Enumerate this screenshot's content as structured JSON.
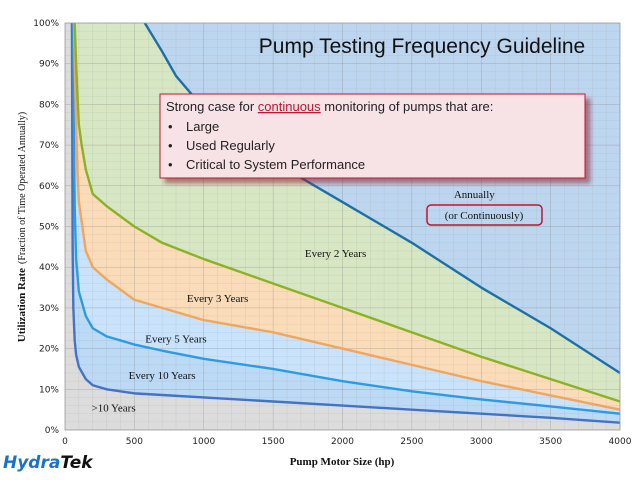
{
  "chart_data": {
    "type": "area",
    "title": "Pump Testing Frequency Guideline",
    "xlabel": "Pump Motor Size (hp)",
    "ylabel": "Utilization Rate",
    "ylabel_sub": "(Fraction of Time Operated Annually)",
    "xlim": [
      0,
      4000
    ],
    "ylim": [
      0,
      100
    ],
    "x_ticks": [
      "0",
      "500",
      "1000",
      "1500",
      "2000",
      "2500",
      "3000",
      "3500",
      "4000"
    ],
    "y_ticks": [
      "0%",
      "10%",
      "20%",
      "30%",
      "40%",
      "50%",
      "60%",
      "70%",
      "80%",
      "90%",
      "100%"
    ],
    "grid": true,
    "boundaries": [
      {
        "color": "#4472c4",
        "x": [
          50,
          55,
          60,
          70,
          80,
          100,
          150,
          200,
          300,
          500,
          700,
          1000,
          1500,
          2000,
          2500,
          3000,
          3500,
          4000
        ],
        "y": [
          100,
          45,
          30,
          22,
          18.5,
          15.5,
          12.5,
          11,
          10,
          9,
          8.6,
          8,
          7,
          6,
          5,
          4,
          3,
          1.8
        ]
      },
      {
        "color": "#2e9be0",
        "x": [
          60,
          65,
          70,
          80,
          100,
          150,
          200,
          300,
          500,
          700,
          1000,
          1500,
          2000,
          2500,
          3000,
          3500,
          4000
        ],
        "y": [
          100,
          70,
          55,
          42,
          34,
          28,
          25,
          23,
          21,
          19.5,
          17.5,
          15,
          12,
          9.5,
          7.5,
          5.8,
          4
        ]
      },
      {
        "color": "#f0a65f",
        "x": [
          65,
          70,
          80,
          90,
          100,
          150,
          200,
          300,
          500,
          700,
          1000,
          1500,
          2000,
          2500,
          3000,
          3500,
          4000
        ],
        "y": [
          100,
          90,
          75,
          63,
          56,
          44,
          40,
          37,
          32,
          30,
          27,
          24,
          20,
          16,
          12,
          8.5,
          5
        ]
      },
      {
        "color": "#8ab226",
        "x": [
          70,
          80,
          90,
          100,
          120,
          150,
          200,
          300,
          500,
          700,
          1000,
          1500,
          2000,
          2500,
          3000,
          3500,
          4000
        ],
        "y": [
          100,
          90,
          82,
          75,
          70,
          64,
          58,
          55,
          50,
          46,
          42,
          36,
          30,
          24,
          18,
          12.5,
          7
        ]
      },
      {
        "color": "#1e6fa8",
        "x": [
          575,
          700,
          800,
          1000,
          1200,
          1500,
          1800,
          2000,
          2500,
          3000,
          3500,
          4000
        ],
        "y": [
          100,
          93,
          87,
          79,
          73,
          66,
          60,
          56,
          46,
          35,
          25,
          14
        ]
      }
    ],
    "regions": [
      {
        "name": ">10 Years",
        "fill": "#dcdcdc",
        "label_x": 350,
        "label_y": 4.5
      },
      {
        "name": "Every 10 Years",
        "fill": "#bcd9f5",
        "label_x": 700,
        "label_y": 12.5
      },
      {
        "name": "Every 5 Years",
        "fill": "#c8e3fb",
        "label_x": 800,
        "label_y": 21.5
      },
      {
        "name": "Every 3 Years",
        "fill": "#fbdcb8",
        "label_x": 1100,
        "label_y": 31.5
      },
      {
        "name": "Every 2 Years",
        "fill": "#d7e7c3",
        "label_x": 1950,
        "label_y": 42.5
      },
      {
        "name": "Annually",
        "fill": "#bdd6ef",
        "label_x": 2950,
        "label_y": 57
      }
    ],
    "annotations": {
      "region_sub_label": "(or Continuously)",
      "callout": {
        "heading_prefix": "Strong case for ",
        "heading_emphasis": "continuous",
        "heading_suffix": " monitoring of pumps that are:",
        "bullet": "•",
        "items": [
          "Large",
          "Used Regularly",
          "Critical to System Performance"
        ]
      }
    }
  },
  "logo": {
    "part1": "Hydra",
    "part2": "Tek",
    "color1": "#1a73c8",
    "color2": "#111111"
  }
}
